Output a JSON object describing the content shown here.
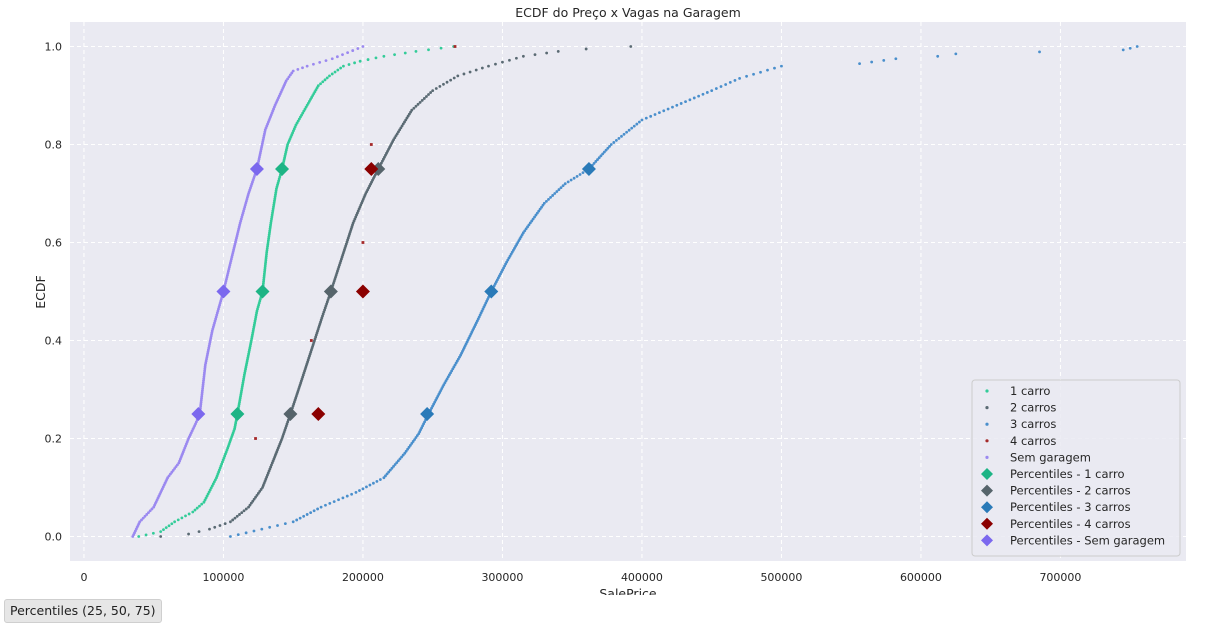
{
  "chart_data": {
    "type": "scatter",
    "title": "ECDF do Preço x Vagas na Garagem",
    "xlabel": "SalePrice",
    "ylabel": "ECDF",
    "xlim": [
      -10000,
      790000
    ],
    "ylim": [
      -0.05,
      1.05
    ],
    "x_ticks": [
      0,
      100000,
      200000,
      300000,
      400000,
      500000,
      600000,
      700000
    ],
    "y_ticks": [
      0.0,
      0.2,
      0.4,
      0.6,
      0.8,
      1.0
    ],
    "grid": true,
    "legend_position": "lower right",
    "series": [
      {
        "name": "1 carro",
        "kind": "ecdf",
        "color": "#33cc99",
        "knots": [
          [
            39300,
            0.0
          ],
          [
            55000,
            0.01
          ],
          [
            65000,
            0.03
          ],
          [
            78000,
            0.05
          ],
          [
            86000,
            0.07
          ],
          [
            95000,
            0.12
          ],
          [
            103000,
            0.18
          ],
          [
            108000,
            0.22
          ],
          [
            110000,
            0.25
          ],
          [
            115000,
            0.33
          ],
          [
            120000,
            0.4
          ],
          [
            124000,
            0.46
          ],
          [
            128000,
            0.5
          ],
          [
            131000,
            0.58
          ],
          [
            134000,
            0.64
          ],
          [
            138000,
            0.71
          ],
          [
            142000,
            0.75
          ],
          [
            146000,
            0.8
          ],
          [
            152000,
            0.84
          ],
          [
            160000,
            0.88
          ],
          [
            168000,
            0.92
          ],
          [
            176000,
            0.94
          ],
          [
            186000,
            0.96
          ],
          [
            198000,
            0.97
          ],
          [
            215000,
            0.98
          ],
          [
            238000,
            0.99
          ],
          [
            265000,
            1.0
          ]
        ]
      },
      {
        "name": "2 carros",
        "kind": "ecdf",
        "color": "#5a6a73",
        "knots": [
          [
            55000,
            0.0
          ],
          [
            75000,
            0.005
          ],
          [
            90000,
            0.015
          ],
          [
            105000,
            0.03
          ],
          [
            118000,
            0.06
          ],
          [
            128000,
            0.1
          ],
          [
            135000,
            0.15
          ],
          [
            142000,
            0.2
          ],
          [
            148000,
            0.25
          ],
          [
            155000,
            0.31
          ],
          [
            163000,
            0.38
          ],
          [
            171000,
            0.45
          ],
          [
            177000,
            0.5
          ],
          [
            185000,
            0.57
          ],
          [
            193000,
            0.64
          ],
          [
            202000,
            0.7
          ],
          [
            211000,
            0.75
          ],
          [
            222000,
            0.81
          ],
          [
            235000,
            0.87
          ],
          [
            250000,
            0.91
          ],
          [
            268000,
            0.94
          ],
          [
            290000,
            0.96
          ],
          [
            315000,
            0.98
          ],
          [
            340000,
            0.99
          ],
          [
            360000,
            0.995
          ],
          [
            392000,
            1.0
          ]
        ]
      },
      {
        "name": "3 carros",
        "kind": "ecdf",
        "color": "#4a8fcc",
        "knots": [
          [
            105000,
            0.0
          ],
          [
            150000,
            0.03
          ],
          [
            170000,
            0.06
          ],
          [
            195000,
            0.09
          ],
          [
            215000,
            0.12
          ],
          [
            230000,
            0.17
          ],
          [
            240000,
            0.21
          ],
          [
            247000,
            0.25
          ],
          [
            258000,
            0.31
          ],
          [
            270000,
            0.37
          ],
          [
            282000,
            0.44
          ],
          [
            292000,
            0.5
          ],
          [
            303000,
            0.56
          ],
          [
            315000,
            0.62
          ],
          [
            330000,
            0.68
          ],
          [
            345000,
            0.72
          ],
          [
            362000,
            0.75
          ],
          [
            378000,
            0.8
          ],
          [
            400000,
            0.85
          ],
          [
            425000,
            0.88
          ],
          [
            450000,
            0.91
          ],
          [
            470000,
            0.935
          ],
          [
            500000,
            0.96
          ],
          [
            556000,
            0.965
          ],
          [
            582000,
            0.975
          ],
          [
            612000,
            0.98
          ],
          [
            625000,
            0.985
          ],
          [
            745000,
            0.993
          ],
          [
            755000,
            1.0
          ]
        ]
      },
      {
        "name": "4 carros",
        "kind": "points",
        "color": "#a52a2a",
        "points": [
          [
            123000,
            0.2
          ],
          [
            163000,
            0.4
          ],
          [
            200000,
            0.6
          ],
          [
            206000,
            0.8
          ],
          [
            266000,
            1.0
          ]
        ]
      },
      {
        "name": "Sem garagem",
        "kind": "ecdf",
        "color": "#9b89f0",
        "knots": [
          [
            35000,
            0.0
          ],
          [
            40000,
            0.03
          ],
          [
            50000,
            0.06
          ],
          [
            55000,
            0.09
          ],
          [
            60000,
            0.12
          ],
          [
            68000,
            0.15
          ],
          [
            75000,
            0.2
          ],
          [
            80000,
            0.23
          ],
          [
            83000,
            0.25
          ],
          [
            87000,
            0.35
          ],
          [
            92000,
            0.42
          ],
          [
            100000,
            0.5
          ],
          [
            106000,
            0.57
          ],
          [
            112000,
            0.64
          ],
          [
            118000,
            0.7
          ],
          [
            124000,
            0.75
          ],
          [
            130000,
            0.83
          ],
          [
            137000,
            0.88
          ],
          [
            145000,
            0.93
          ],
          [
            150000,
            0.95
          ],
          [
            160000,
            0.96
          ],
          [
            178000,
            0.975
          ],
          [
            200000,
            1.0
          ]
        ]
      },
      {
        "name": "Percentiles - 1 carro",
        "kind": "percentiles",
        "color": "#1db485",
        "points": [
          [
            110000,
            0.25
          ],
          [
            128000,
            0.5
          ],
          [
            142000,
            0.75
          ]
        ]
      },
      {
        "name": "Percentiles - 2 carros",
        "kind": "percentiles",
        "color": "#56646b",
        "points": [
          [
            148000,
            0.25
          ],
          [
            177000,
            0.5
          ],
          [
            211000,
            0.75
          ]
        ]
      },
      {
        "name": "Percentiles - 3 carros",
        "kind": "percentiles",
        "color": "#2a7ab8",
        "points": [
          [
            246000,
            0.25
          ],
          [
            292000,
            0.5
          ],
          [
            362000,
            0.75
          ]
        ]
      },
      {
        "name": "Percentiles - 4 carros",
        "kind": "percentiles",
        "color": "#8b0000",
        "points": [
          [
            168000,
            0.25
          ],
          [
            200000,
            0.5
          ],
          [
            206000,
            0.75
          ]
        ]
      },
      {
        "name": "Percentiles - Sem garagem",
        "kind": "percentiles",
        "color": "#7b68ee",
        "points": [
          [
            82000,
            0.25
          ],
          [
            100000,
            0.5
          ],
          [
            124000,
            0.75
          ]
        ]
      }
    ]
  },
  "footer": {
    "button_label": "Percentiles (25, 50, 75)"
  }
}
